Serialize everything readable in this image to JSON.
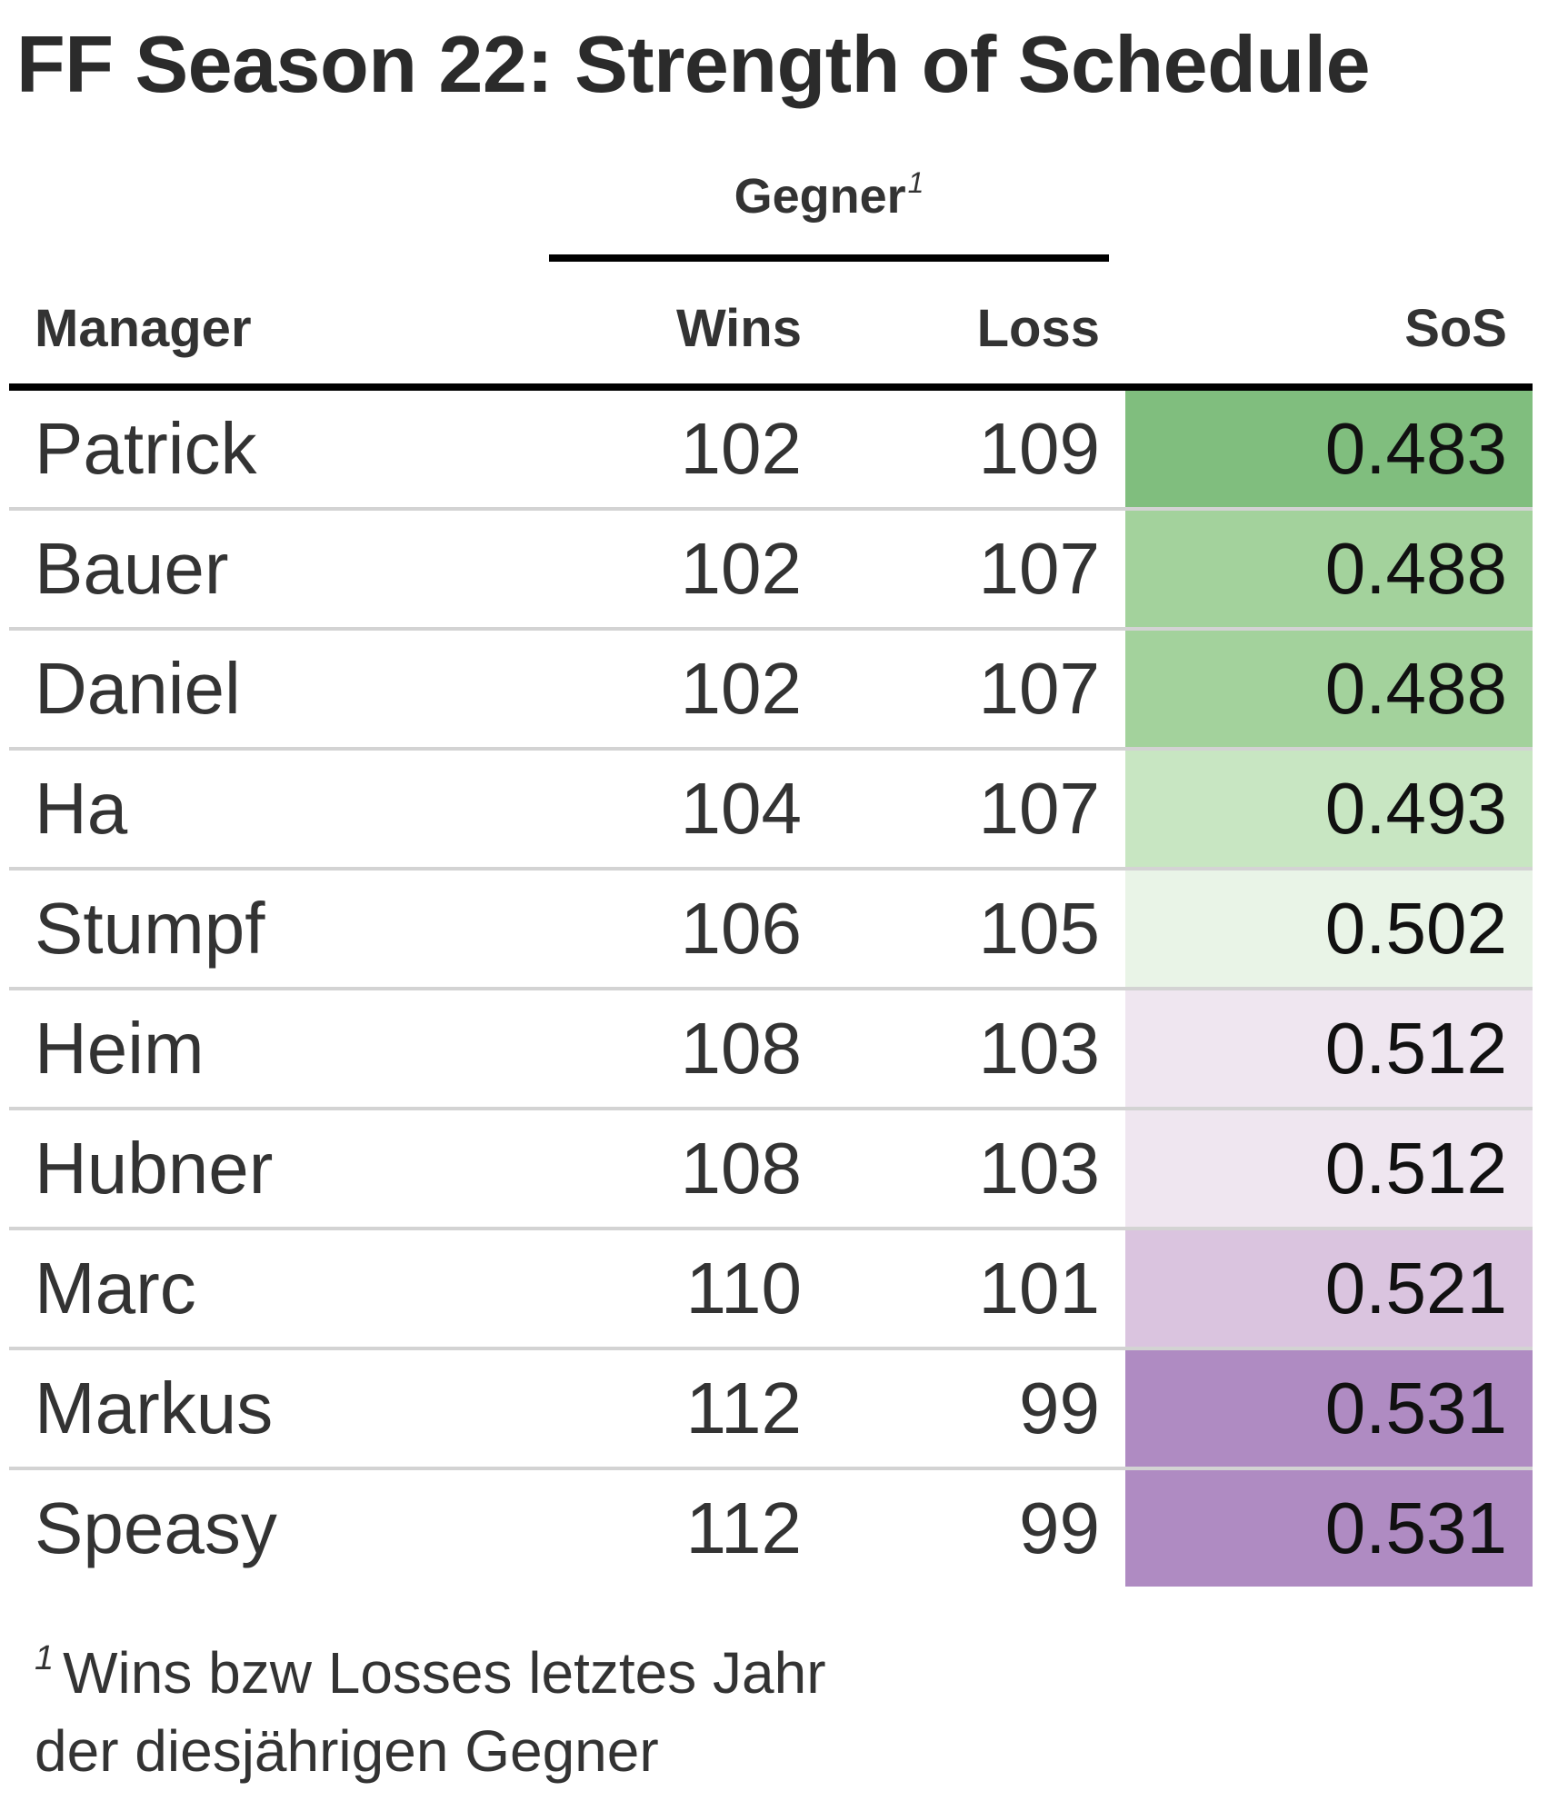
{
  "title": "FF Season 22: Strength of Schedule",
  "spanner": {
    "label": "Gegner",
    "footnote_mark": "1"
  },
  "columns": {
    "manager": "Manager",
    "wins": "Wins",
    "loss": "Loss",
    "sos": "SoS"
  },
  "colors": {
    "high_green": "#80be7e",
    "mid_green": "#a3d29c",
    "light_green": "#c8e6c2",
    "pale_green": "#e9f4e7",
    "pale_purple": "#efe6f0",
    "light_purple": "#dac4df",
    "high_purple": "#af8bc2"
  },
  "chart_data": {
    "type": "table",
    "title": "FF Season 22: Strength of Schedule",
    "columns": [
      "Manager",
      "Wins",
      "Loss",
      "SoS"
    ],
    "rows": [
      {
        "manager": "Patrick",
        "wins": "102",
        "loss": "109",
        "sos": "0.483",
        "color": "#80be7e"
      },
      {
        "manager": "Bauer",
        "wins": "102",
        "loss": "107",
        "sos": "0.488",
        "color": "#a3d29c"
      },
      {
        "manager": "Daniel",
        "wins": "102",
        "loss": "107",
        "sos": "0.488",
        "color": "#a3d29c"
      },
      {
        "manager": "Ha",
        "wins": "104",
        "loss": "107",
        "sos": "0.493",
        "color": "#c8e6c2"
      },
      {
        "manager": "Stumpf",
        "wins": "106",
        "loss": "105",
        "sos": "0.502",
        "color": "#e9f4e7"
      },
      {
        "manager": "Heim",
        "wins": "108",
        "loss": "103",
        "sos": "0.512",
        "color": "#efe6f0"
      },
      {
        "manager": "Hubner",
        "wins": "108",
        "loss": "103",
        "sos": "0.512",
        "color": "#efe6f0"
      },
      {
        "manager": "Marc",
        "wins": "110",
        "loss": "101",
        "sos": "0.521",
        "color": "#dac4df"
      },
      {
        "manager": "Markus",
        "wins": "112",
        "loss": "99",
        "sos": "0.531",
        "color": "#af8bc2"
      },
      {
        "manager": "Speasy",
        "wins": "112",
        "loss": "99",
        "sos": "0.531",
        "color": "#af8bc2"
      }
    ]
  },
  "footnote": {
    "mark": "1",
    "line1": "Wins bzw Losses letztes Jahr",
    "line2": "der diesjährigen Gegner"
  }
}
